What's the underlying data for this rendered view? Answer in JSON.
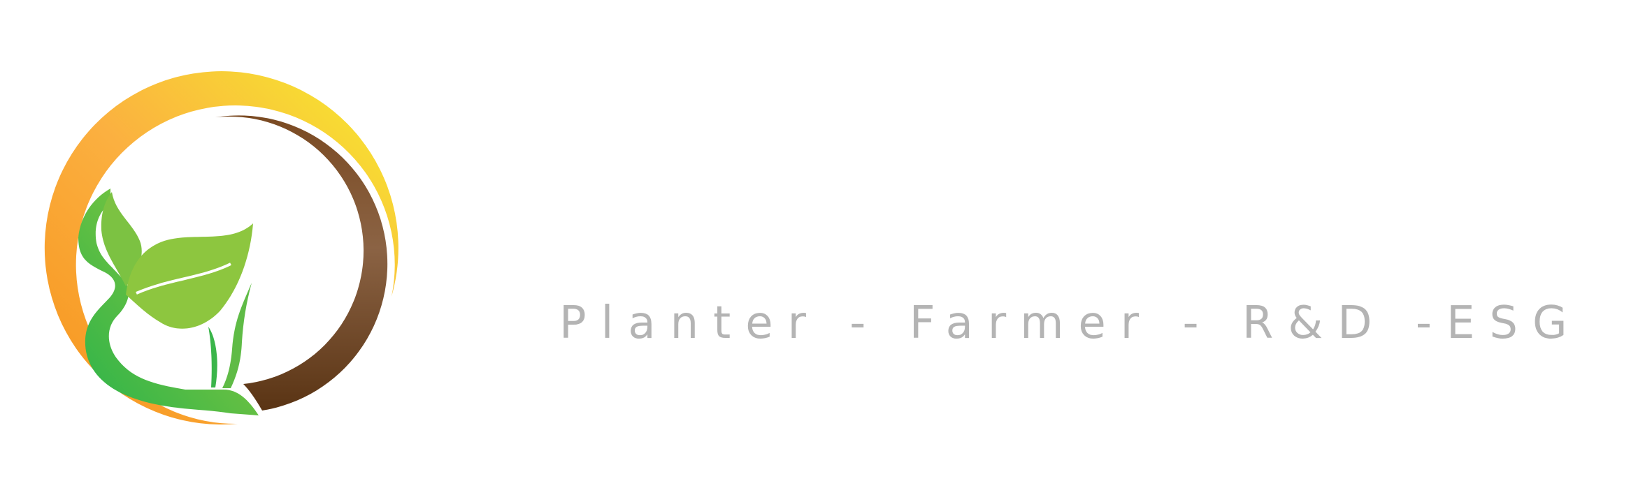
{
  "logo": {
    "name": "sprouting-plant-sun-logo"
  },
  "tagline": "Planter - Farmer - R&D -ESG",
  "colors": {
    "sun_orange": "#f7941d",
    "sun_yellow": "#f6ec2e",
    "soil_brown": "#6b3f1c",
    "leaf_light": "#8dc63f",
    "leaf_dark": "#3ab54a",
    "text_gray": "#b4b4b4",
    "background": "#ffffff"
  }
}
